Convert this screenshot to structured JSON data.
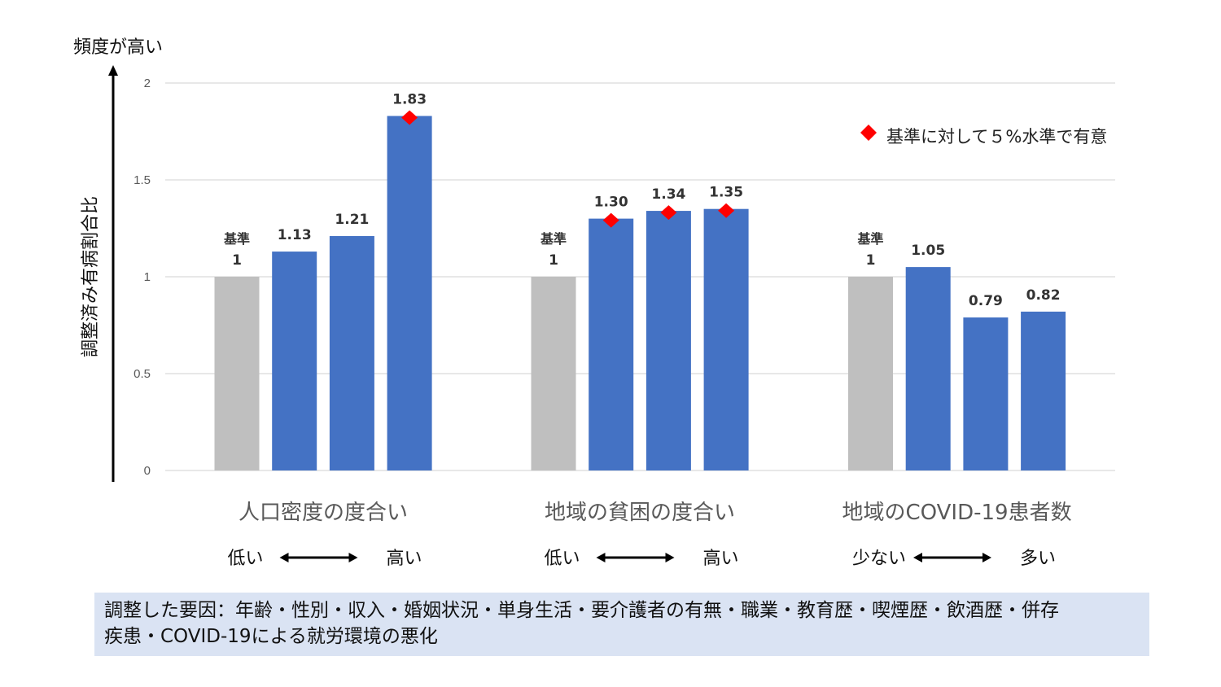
{
  "chart_data": {
    "type": "bar",
    "title": "",
    "ylabel": "調整済み有病割合比",
    "y_direction_label": "頻度が高い",
    "ylim": [
      0,
      2
    ],
    "yticks": [
      "0",
      "0.5",
      "1",
      "1.5",
      "2"
    ],
    "reference_label": "基準",
    "groups": [
      {
        "name": "人口密度の度合い",
        "low_label": "低い",
        "high_label": "高い",
        "bars": [
          {
            "value": 1,
            "label": "1",
            "reference": true,
            "significant": false
          },
          {
            "value": 1.13,
            "label": "1.13",
            "reference": false,
            "significant": false
          },
          {
            "value": 1.21,
            "label": "1.21",
            "reference": false,
            "significant": false
          },
          {
            "value": 1.83,
            "label": "1.83",
            "reference": false,
            "significant": true
          }
        ]
      },
      {
        "name": "地域の貧困の度合い",
        "low_label": "低い",
        "high_label": "高い",
        "bars": [
          {
            "value": 1,
            "label": "1",
            "reference": true,
            "significant": false
          },
          {
            "value": 1.3,
            "label": "1.30",
            "reference": false,
            "significant": true
          },
          {
            "value": 1.34,
            "label": "1.34",
            "reference": false,
            "significant": true
          },
          {
            "value": 1.35,
            "label": "1.35",
            "reference": false,
            "significant": true
          }
        ]
      },
      {
        "name": "地域のCOVID-19患者数",
        "low_label": "少ない",
        "high_label": "多い",
        "bars": [
          {
            "value": 1,
            "label": "1",
            "reference": true,
            "significant": false
          },
          {
            "value": 1.05,
            "label": "1.05",
            "reference": false,
            "significant": false
          },
          {
            "value": 0.79,
            "label": "0.79",
            "reference": false,
            "significant": false
          },
          {
            "value": 0.82,
            "label": "0.82",
            "reference": false,
            "significant": false
          }
        ]
      }
    ],
    "legend": {
      "marker": "diamond",
      "text": "基準に対して５%水準で有意",
      "position": "top-right"
    },
    "grid": true,
    "colors": {
      "reference": "#bfbfbf",
      "bar": "#4472c4",
      "marker": "#ff0000",
      "grid": "#d9d9d9"
    }
  },
  "footnote": {
    "line1": "調整した要因：年齢・性別・収入・婚姻状況・単身生活・要介護者の有無・職業・教育歴・喫煙歴・飲酒歴・併存",
    "line2": "疾患・COVID-19による就労環境の悪化"
  }
}
